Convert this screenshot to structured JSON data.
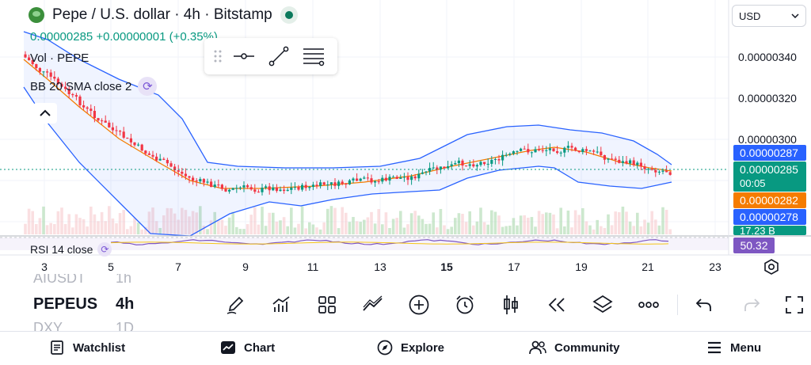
{
  "header": {
    "title": "Pepe / U.S. dollar · 4h · Bitstamp",
    "price_change": "0.00000285 +0.00000001 (+0.35%)",
    "vol_legend": "Vol · PEPE",
    "bb_legend": "BB 20 SMA close 2",
    "rsi_legend": "RSI 14 close"
  },
  "currency_select": {
    "value": "USD"
  },
  "price_axis": {
    "labels": [
      "0.00000340",
      "0.00000320",
      "0.00000300"
    ],
    "tags": {
      "upper": "0.00000287",
      "last": "0.00000285",
      "countdown": "00:05",
      "middle": "0.00000282",
      "lower": "0.00000278",
      "volume": "17.23 B",
      "rsi": "50.32"
    },
    "colors": {
      "upper": "#2962ff",
      "last": "#089981",
      "middle": "#f57c00",
      "lower": "#2962ff",
      "volume": "#089981",
      "rsi": "#7e57c2"
    }
  },
  "time_axis": {
    "labels": [
      "3",
      "5",
      "7",
      "9",
      "11",
      "13",
      "15",
      "17",
      "19",
      "21",
      "23"
    ],
    "bold_label": "15"
  },
  "drawing_toolbar": [
    "drag-handle-icon",
    "horizontal-line-icon",
    "trend-line-icon",
    "settings-lines-icon"
  ],
  "bottom_toolbar": {
    "symbol_prev": "AIUSDT",
    "symbol": "PEPEUS",
    "symbol_next": "DXY",
    "interval_prev": "1h",
    "interval": "4h",
    "interval_next": "1D",
    "tools": [
      "pencil-icon",
      "indicators-icon",
      "layouts-icon",
      "compare-icon",
      "add-icon",
      "alarm-icon",
      "candles-icon",
      "replay-icon",
      "layers-icon",
      "more-icon",
      "undo-icon",
      "redo-icon",
      "fullscreen-icon"
    ]
  },
  "nav": {
    "watchlist": "Watchlist",
    "chart": "Chart",
    "explore": "Explore",
    "community": "Community",
    "menu": "Menu"
  },
  "colors": {
    "up": "#089981",
    "down": "#f23645",
    "bb_band": "#2962ff",
    "bb_basis": "#f57c00",
    "rsi": "#7e57c2"
  }
}
